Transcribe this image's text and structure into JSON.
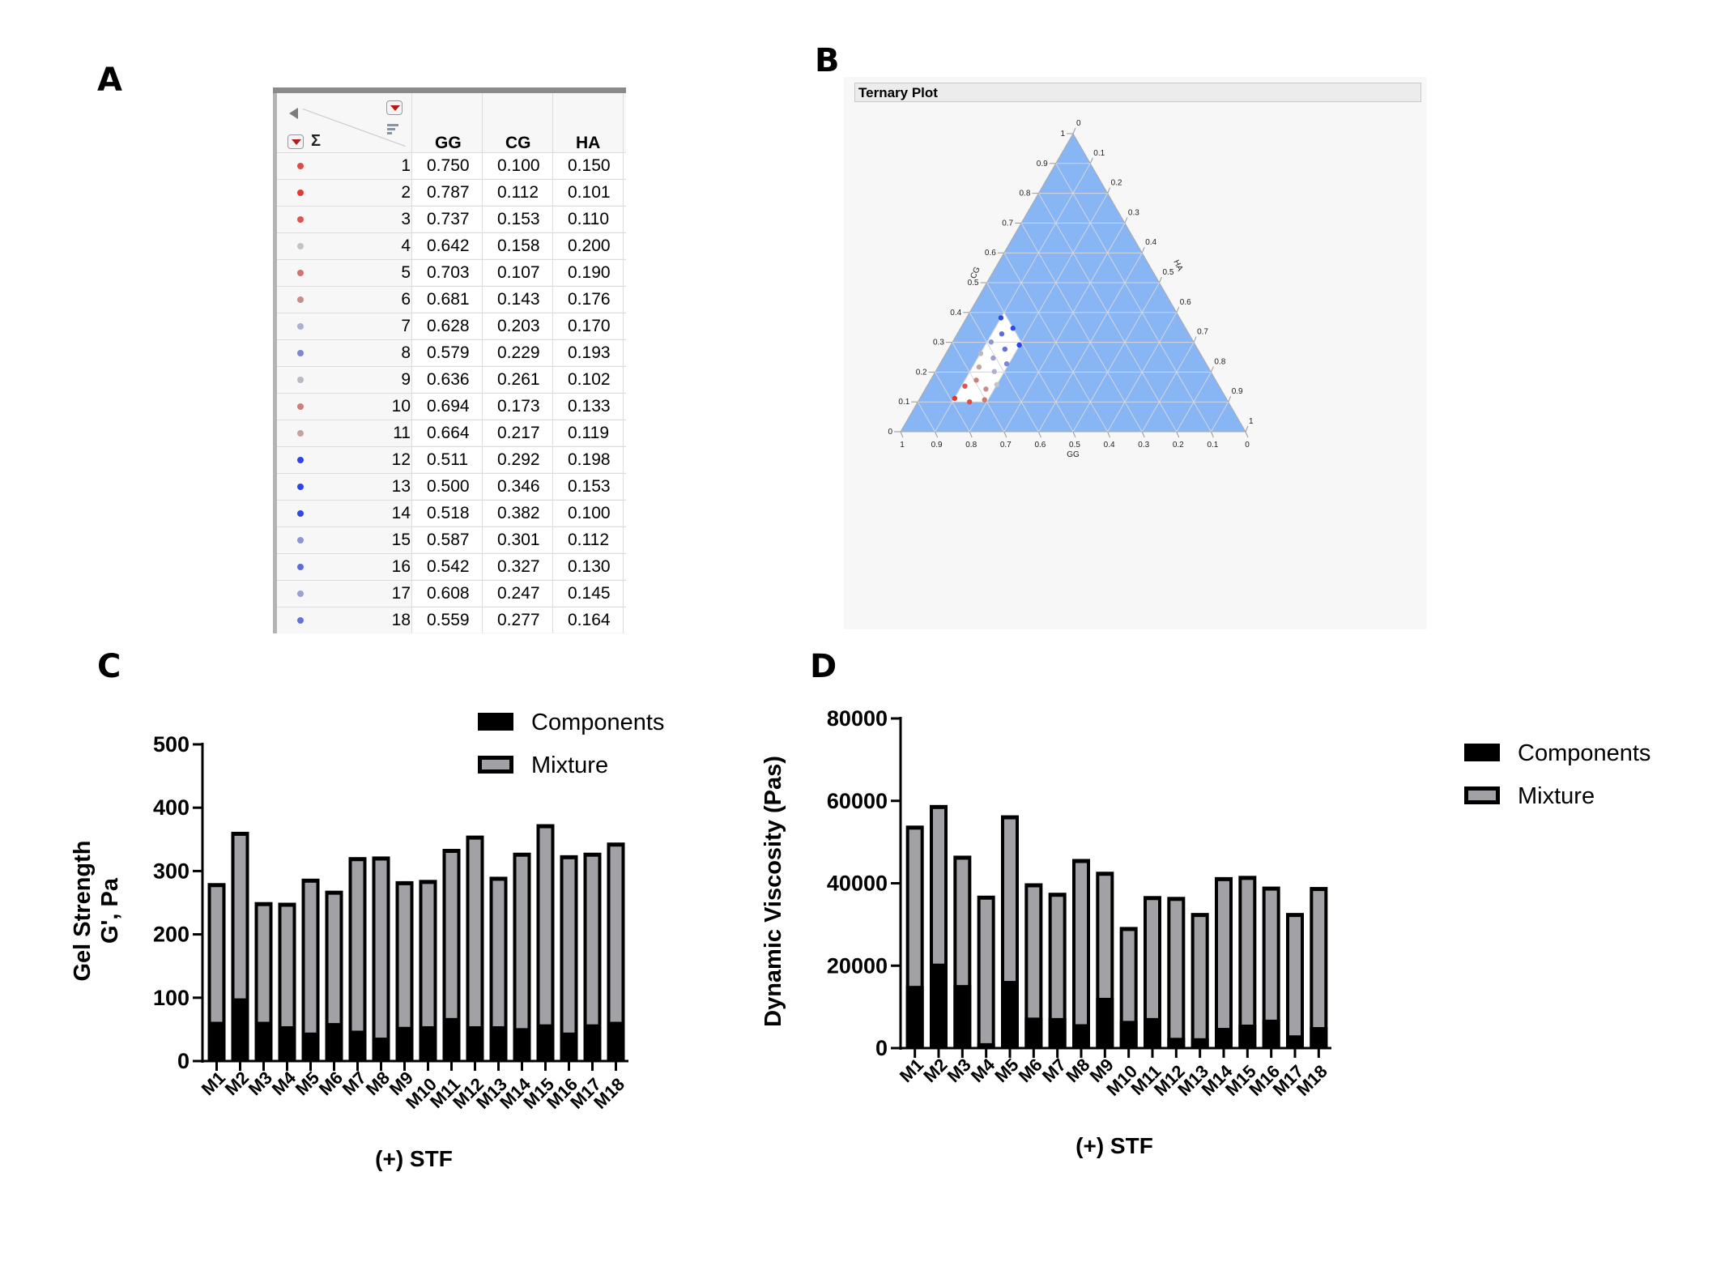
{
  "panels": {
    "a": "A",
    "b": "B",
    "c": "C",
    "d": "D"
  },
  "table": {
    "columns": [
      "GG",
      "CG",
      "HA"
    ],
    "sigma": "Σ",
    "rows": [
      {
        "n": "1",
        "gg": "0.750",
        "cg": "0.100",
        "ha": "0.150",
        "color": "#e04a43"
      },
      {
        "n": "2",
        "gg": "0.787",
        "cg": "0.112",
        "ha": "0.101",
        "color": "#e23a2f"
      },
      {
        "n": "3",
        "gg": "0.737",
        "cg": "0.153",
        "ha": "0.110",
        "color": "#dd5550"
      },
      {
        "n": "4",
        "gg": "0.642",
        "cg": "0.158",
        "ha": "0.200",
        "color": "#c4c4c8"
      },
      {
        "n": "5",
        "gg": "0.703",
        "cg": "0.107",
        "ha": "0.190",
        "color": "#cf7470"
      },
      {
        "n": "6",
        "gg": "0.681",
        "cg": "0.143",
        "ha": "0.176",
        "color": "#c98d8b"
      },
      {
        "n": "7",
        "gg": "0.628",
        "cg": "0.203",
        "ha": "0.170",
        "color": "#aeb0cd"
      },
      {
        "n": "8",
        "gg": "0.579",
        "cg": "0.229",
        "ha": "0.193",
        "color": "#7e86d6"
      },
      {
        "n": "9",
        "gg": "0.636",
        "cg": "0.261",
        "ha": "0.102",
        "color": "#b9b9c2"
      },
      {
        "n": "10",
        "gg": "0.694",
        "cg": "0.173",
        "ha": "0.133",
        "color": "#cc7f7b"
      },
      {
        "n": "11",
        "gg": "0.664",
        "cg": "0.217",
        "ha": "0.119",
        "color": "#c5a3a3"
      },
      {
        "n": "12",
        "gg": "0.511",
        "cg": "0.292",
        "ha": "0.198",
        "color": "#2d44ea"
      },
      {
        "n": "13",
        "gg": "0.500",
        "cg": "0.346",
        "ha": "0.153",
        "color": "#2f45ea"
      },
      {
        "n": "14",
        "gg": "0.518",
        "cg": "0.382",
        "ha": "0.100",
        "color": "#3447e6"
      },
      {
        "n": "15",
        "gg": "0.587",
        "cg": "0.301",
        "ha": "0.112",
        "color": "#8d95d3"
      },
      {
        "n": "16",
        "gg": "0.542",
        "cg": "0.327",
        "ha": "0.130",
        "color": "#5d6ae0"
      },
      {
        "n": "17",
        "gg": "0.608",
        "cg": "0.247",
        "ha": "0.145",
        "color": "#9ca0d2"
      },
      {
        "n": "18",
        "gg": "0.559",
        "cg": "0.277",
        "ha": "0.164",
        "color": "#6670dc"
      }
    ]
  },
  "ternary": {
    "title": "Ternary Plot",
    "axes": {
      "bottom": "GG",
      "left": "CG",
      "right": "HA"
    },
    "fill_color": "#88b6f5",
    "ticks": [
      "0",
      "0.1",
      "0.2",
      "0.3",
      "0.4",
      "0.5",
      "0.6",
      "0.7",
      "0.8",
      "0.9",
      "1"
    ],
    "region": {
      "note": "constraint region (white)",
      "gg": [
        0.5,
        0.8
      ],
      "cg": [
        0.1,
        0.4
      ],
      "ha": [
        0.1,
        0.2
      ]
    }
  },
  "chart_data": [
    {
      "type": "bar",
      "stacked": "overlay",
      "title": "",
      "categories": [
        "M1",
        "M2",
        "M3",
        "M4",
        "M5",
        "M6",
        "M7",
        "M8",
        "M9",
        "M10",
        "M11",
        "M12",
        "M13",
        "M14",
        "M15",
        "M16",
        "M17",
        "M18"
      ],
      "series": [
        {
          "name": "Components",
          "color": "#000000",
          "values": [
            62,
            99,
            62,
            55,
            45,
            60,
            48,
            37,
            54,
            55,
            68,
            55,
            55,
            52,
            58,
            45,
            58,
            62
          ]
        },
        {
          "name": "Mixture",
          "color": "#a2a2a6",
          "values": [
            281,
            362,
            251,
            250,
            288,
            269,
            322,
            323,
            284,
            286,
            335,
            356,
            291,
            329,
            374,
            325,
            329,
            345
          ]
        }
      ],
      "xlabel": "(+) STF",
      "ylabel_lines": [
        "Gel Strength",
        "G', Pa"
      ],
      "ylim": [
        0,
        500
      ],
      "yticks": [
        0,
        100,
        200,
        300,
        400,
        500
      ],
      "grid": false,
      "legend": "top-right"
    },
    {
      "type": "bar",
      "stacked": "overlay",
      "title": "",
      "categories": [
        "M1",
        "M2",
        "M3",
        "M4",
        "M5",
        "M6",
        "M7",
        "M8",
        "M9",
        "M10",
        "M11",
        "M12",
        "M13",
        "M14",
        "M15",
        "M16",
        "M17",
        "M18"
      ],
      "series": [
        {
          "name": "Components",
          "color": "#000000",
          "values": [
            15100,
            20500,
            15300,
            1200,
            16300,
            7400,
            7300,
            5800,
            12200,
            6600,
            7300,
            2500,
            2400,
            4900,
            5700,
            6900,
            3100,
            5100
          ]
        },
        {
          "name": "Mixture",
          "color": "#a2a2a6",
          "values": [
            54000,
            59000,
            46700,
            37000,
            56500,
            40000,
            37700,
            45900,
            42800,
            29400,
            36900,
            36700,
            32800,
            41500,
            41800,
            39200,
            32800,
            39100
          ]
        }
      ],
      "xlabel": "(+) STF",
      "ylabel_lines": [
        "Dynamic Viscosity (Pas)"
      ],
      "ylim": [
        0,
        80000
      ],
      "yticks": [
        0,
        20000,
        40000,
        60000,
        80000
      ],
      "grid": false,
      "legend": "right"
    }
  ]
}
